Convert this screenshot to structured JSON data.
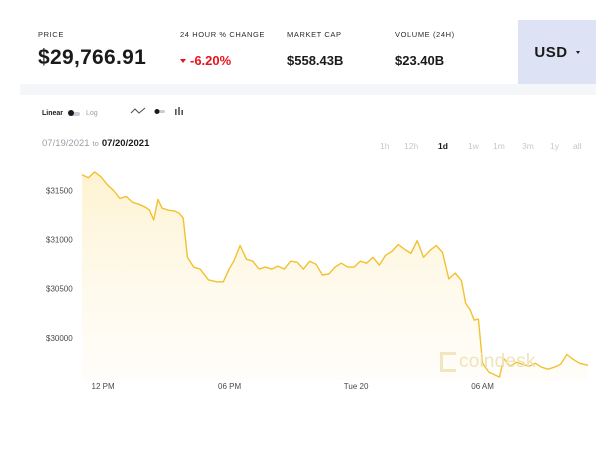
{
  "header": {
    "price": {
      "label": "PRICE",
      "value": "$29,766.91"
    },
    "change": {
      "label": "24 HOUR % CHANGE",
      "value": "-6.20%"
    },
    "market_cap": {
      "label": "MARKET CAP",
      "value": "$558.43B"
    },
    "volume": {
      "label": "VOLUME (24H)",
      "value": "$23.40B"
    },
    "currency": "USD"
  },
  "controls": {
    "scale_linear": "Linear",
    "scale_log": "Log",
    "date_from": "07/19/2021",
    "date_to_word": "to",
    "date_to": "07/20/2021",
    "ranges": [
      "1h",
      "12h",
      "1d",
      "1w",
      "1m",
      "3m",
      "1y",
      "all"
    ],
    "active_range": "1d"
  },
  "watermark": "coindesk",
  "colors": {
    "line": "#f2c12e",
    "negative": "#e8141b",
    "accent_bg": "#dde3f4"
  },
  "chart_data": {
    "type": "area",
    "title": "",
    "xlabel": "",
    "ylabel": "",
    "x_ticks": [
      "12 PM",
      "06 PM",
      "Tue 20",
      "06 AM"
    ],
    "x_tick_hours": [
      1,
      7,
      13,
      19
    ],
    "y_ticks": [
      30000,
      30500,
      31000,
      31500
    ],
    "ylim": [
      29570,
      31760
    ],
    "xlim": [
      0,
      24
    ],
    "grid": false,
    "series": [
      {
        "name": "",
        "x": [
          0,
          0.3,
          0.6,
          0.9,
          1.2,
          1.5,
          1.8,
          2.1,
          2.4,
          2.7,
          3.0,
          3.2,
          3.4,
          3.6,
          3.8,
          4.1,
          4.4,
          4.6,
          4.8,
          5.0,
          5.3,
          5.6,
          6.0,
          6.4,
          6.7,
          7.0,
          7.2,
          7.5,
          7.8,
          8.1,
          8.4,
          8.7,
          9.0,
          9.3,
          9.6,
          9.9,
          10.2,
          10.5,
          10.8,
          11.1,
          11.4,
          11.7,
          12.0,
          12.3,
          12.6,
          12.9,
          13.2,
          13.5,
          13.8,
          14.1,
          14.4,
          14.7,
          15.0,
          15.3,
          15.6,
          15.9,
          16.2,
          16.5,
          16.8,
          17.1,
          17.4,
          17.7,
          18.0,
          18.2,
          18.4,
          18.6,
          18.8,
          19.0,
          19.3,
          19.6,
          19.8,
          20.0,
          20.3,
          20.6,
          20.9,
          21.2,
          21.5,
          21.8,
          22.1,
          22.4,
          22.7,
          23.0,
          23.3,
          23.6,
          24.0
        ],
        "values": [
          31660,
          31630,
          31690,
          31640,
          31560,
          31500,
          31420,
          31440,
          31380,
          31360,
          31330,
          31300,
          31200,
          31410,
          31320,
          31300,
          31290,
          31270,
          31220,
          30820,
          30720,
          30700,
          30590,
          30570,
          30570,
          30710,
          30780,
          30940,
          30800,
          30780,
          30700,
          30720,
          30700,
          30730,
          30700,
          30780,
          30770,
          30700,
          30780,
          30750,
          30640,
          30650,
          30720,
          30760,
          30720,
          30720,
          30780,
          30760,
          30820,
          30740,
          30840,
          30880,
          30950,
          30900,
          30860,
          30990,
          30820,
          30890,
          30940,
          30870,
          30600,
          30660,
          30580,
          30350,
          30290,
          30180,
          30190,
          29740,
          29650,
          29620,
          29600,
          29790,
          29710,
          29750,
          29730,
          29710,
          29740,
          29700,
          29680,
          29700,
          29730,
          29830,
          29780,
          29740,
          29720
        ]
      }
    ]
  }
}
